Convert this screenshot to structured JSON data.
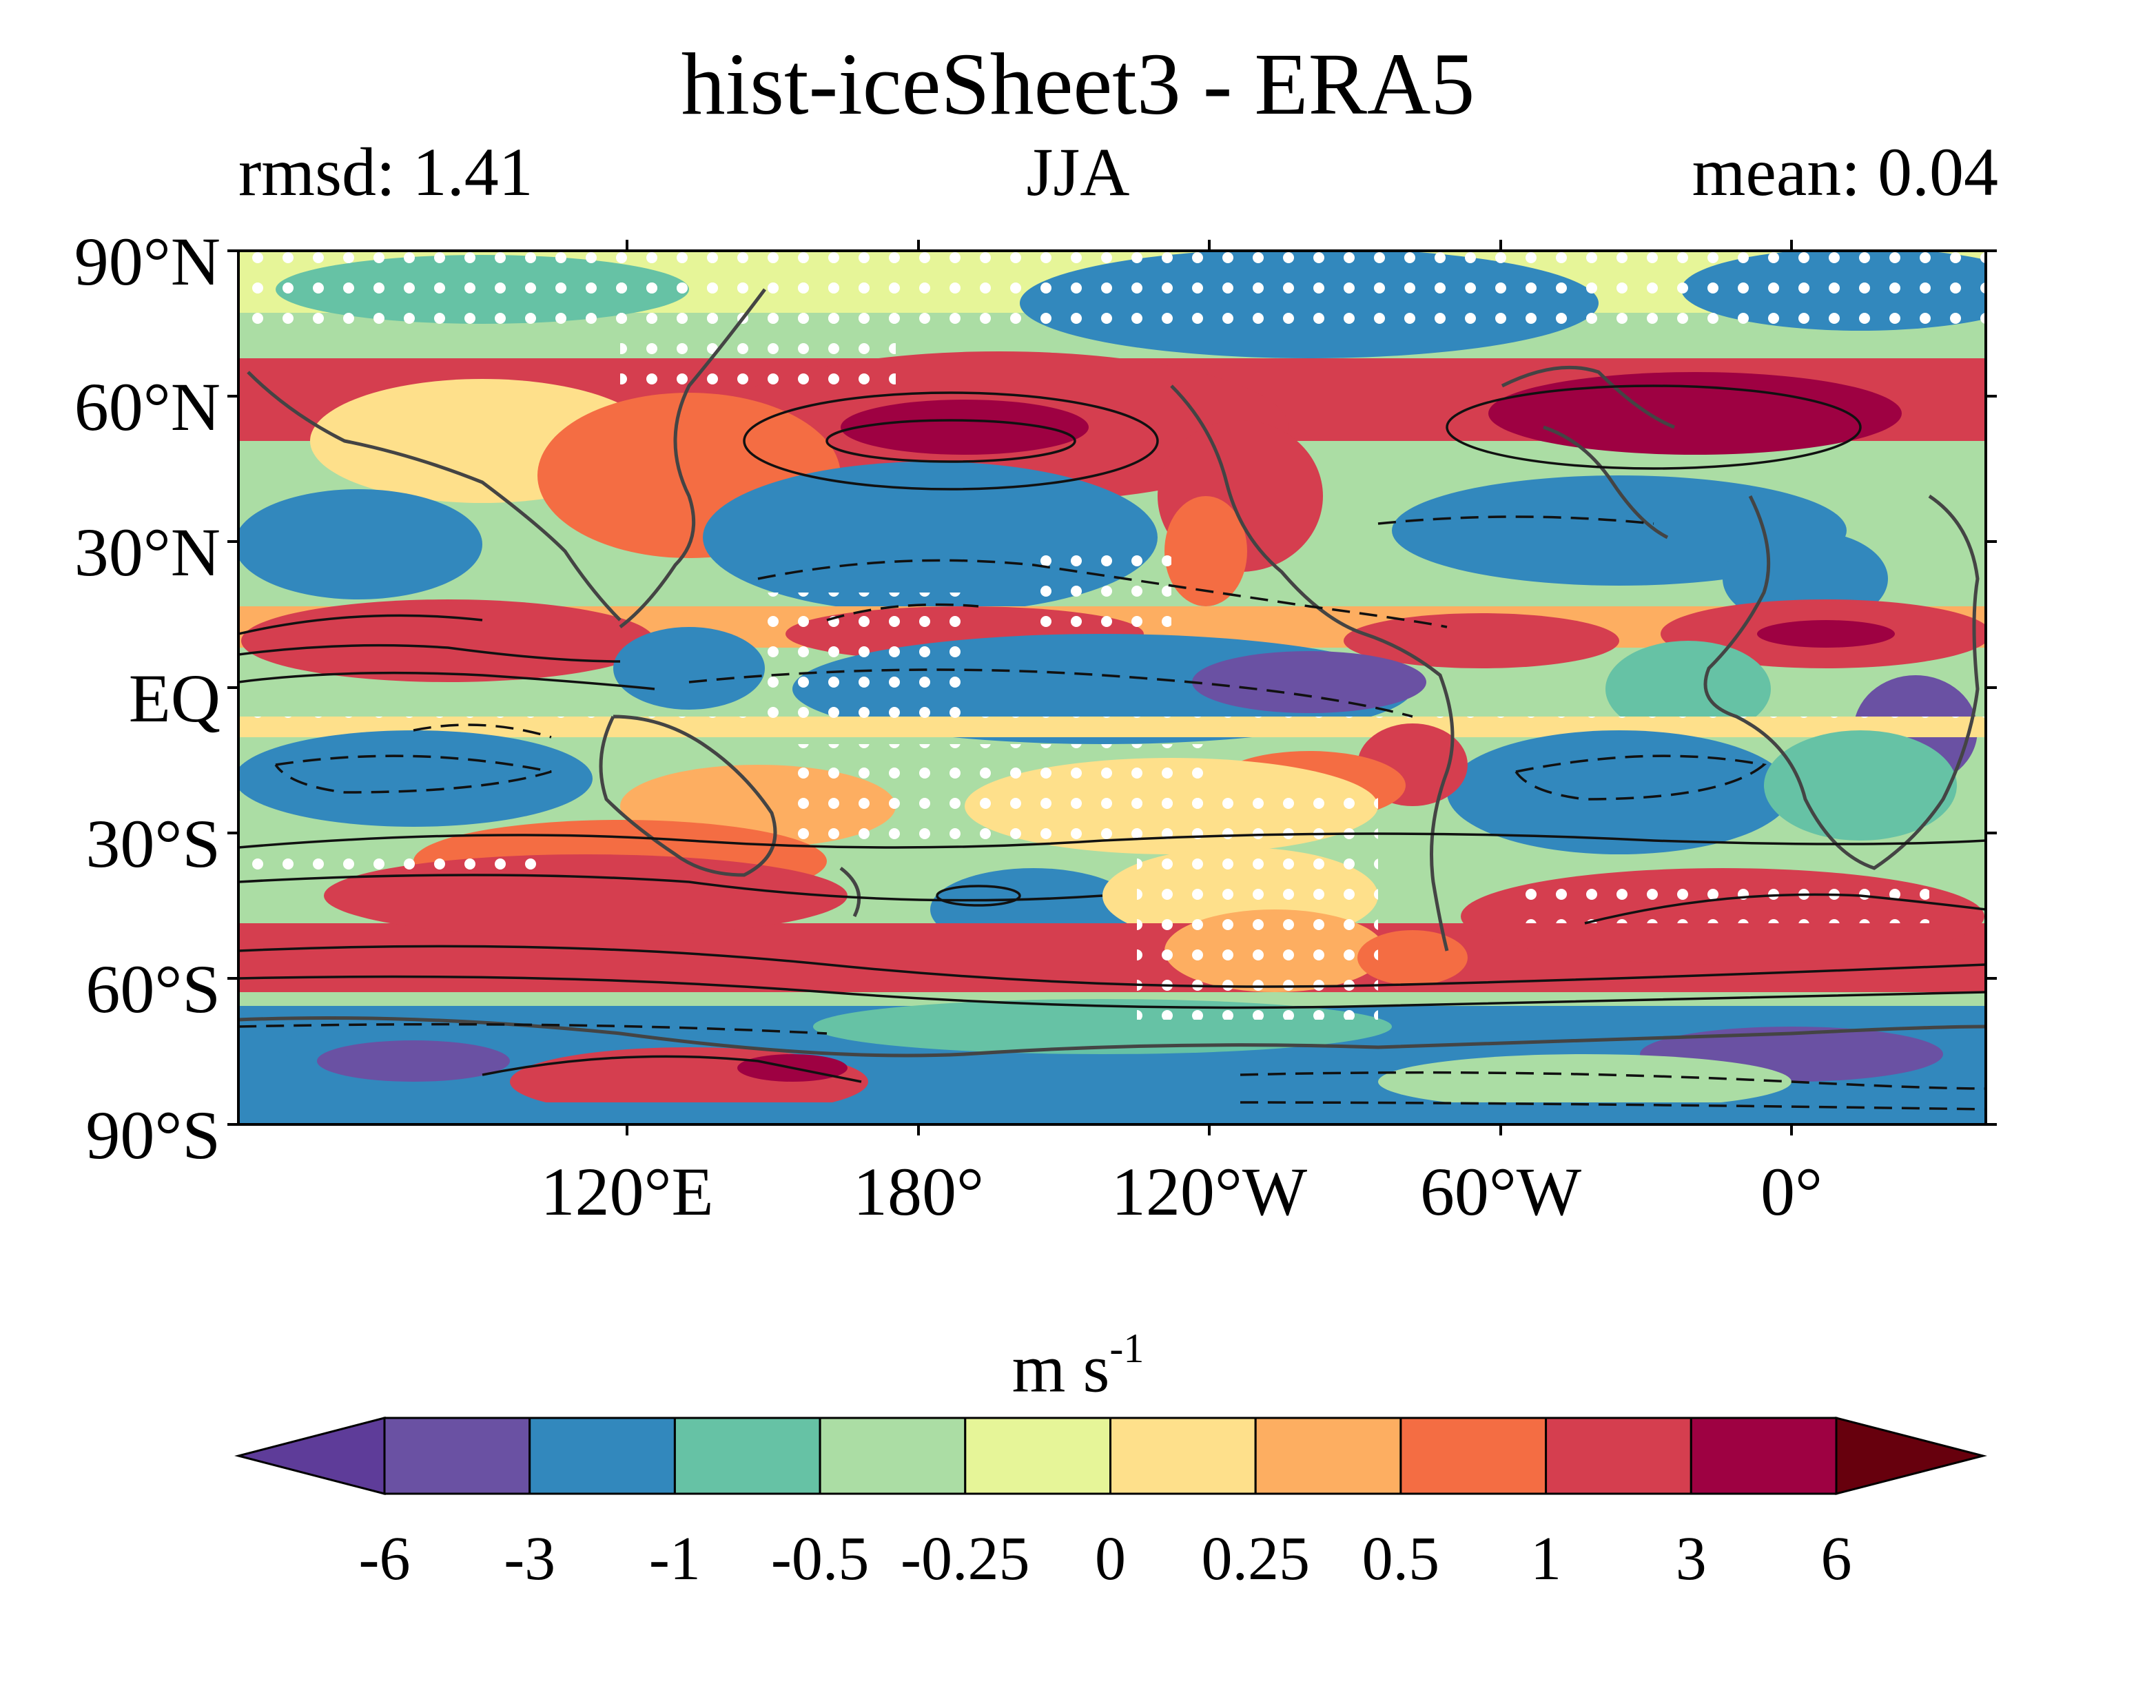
{
  "title": "hist-iceSheet3 - ERA5",
  "subtitle_left": "rmsd: 1.41",
  "subtitle_center": "JJA",
  "subtitle_right": "mean: 0.04",
  "lat_labels": [
    "90°N",
    "60°N",
    "30°N",
    "EQ",
    "30°S",
    "60°S",
    "90°S"
  ],
  "lon_labels": [
    "120°E",
    "180°",
    "120°W",
    "60°W",
    "0°"
  ],
  "colorbar": {
    "units_base": "m s",
    "units_exp": "-1",
    "tick_labels": [
      "-6",
      "-3",
      "-1",
      "-0.5",
      "-0.25",
      "0",
      "0.25",
      "0.5",
      "1",
      "3",
      "6"
    ],
    "colors": [
      "#5e3c99",
      "#6a51a3",
      "#3288bd",
      "#66c2a5",
      "#abdda4",
      "#e6f598",
      "#fee08b",
      "#fdae61",
      "#f46d43",
      "#d53e4f",
      "#9e0142",
      "#67000d"
    ]
  },
  "map": {
    "field": "zonal wind difference",
    "stippling": true,
    "contours": "model climatology (solid positive, dashed negative)"
  }
}
